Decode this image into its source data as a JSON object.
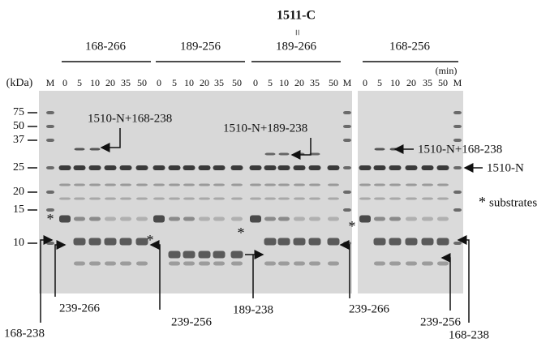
{
  "figure": {
    "title": "1511-C",
    "equivalence": "=",
    "groups": [
      "168-266",
      "189-256",
      "189-266",
      "168-256"
    ],
    "units": {
      "mass": "(kDa)",
      "time": "(min)"
    },
    "markers": [
      "75",
      "50",
      "37",
      "25",
      "20",
      "15",
      "10"
    ],
    "left_gel_lanes": [
      "M",
      "0",
      "5",
      "10",
      "20",
      "35",
      "50",
      "0",
      "5",
      "10",
      "20",
      "35",
      "50",
      "0",
      "5",
      "10",
      "20",
      "35",
      "50",
      "M"
    ],
    "right_gel_lanes": [
      "0",
      "5",
      "10",
      "20",
      "35",
      "50",
      "M"
    ],
    "band_labels": [
      "1510-N+168-238",
      "1510-N+189-238",
      "1510-N+168-238",
      "1510-N"
    ],
    "substrate_marker": "*",
    "legend": "substrates",
    "fragment_labels": [
      "239-266",
      "168-238",
      "239-256",
      "189-238",
      "239-266",
      "239-256",
      "168-238"
    ]
  }
}
